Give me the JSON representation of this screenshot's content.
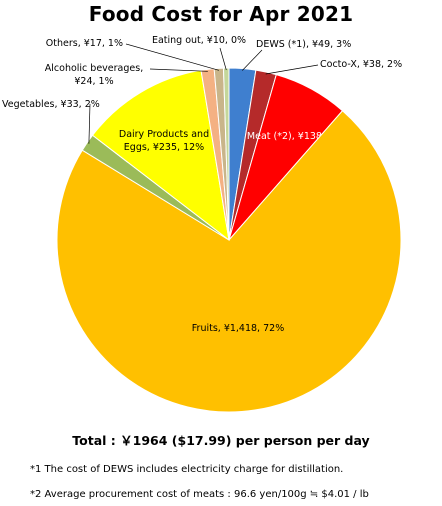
{
  "chart_data": {
    "type": "pie",
    "title": "Food Cost for Apr  2021",
    "start_angle_deg": 0,
    "direction": "clockwise",
    "slices": [
      {
        "name": "DEWS (*1)",
        "value": 49,
        "label": "DEWS (*1), ¥49, 3%",
        "color": "#3f7fcf"
      },
      {
        "name": "Cocto-X",
        "value": 38,
        "label": "Cocto-X, ¥38, 2%",
        "color": "#b52a2a"
      },
      {
        "name": "Meat (*2)",
        "value": 138,
        "label": "Meat (*2), ¥138, 7%",
        "color": "#ff0000"
      },
      {
        "name": "Fruits",
        "value": 1418,
        "label": "Fruits, ¥1,418, 72%",
        "color": "#ffc000"
      },
      {
        "name": "Vegetables",
        "value": 33,
        "label": "Vegetables, ¥33, 2%",
        "color": "#9bbb59"
      },
      {
        "name": "Dairy Products and Eggs",
        "value": 235,
        "label": [
          "Dairy Products and",
          "Eggs, ¥235, 12%"
        ],
        "color": "#ffff00"
      },
      {
        "name": "Alcoholic beverages",
        "value": 24,
        "label": [
          "Alcoholic beverages,",
          "¥24, 1%"
        ],
        "color": "#f4b183"
      },
      {
        "name": "Others",
        "value": 17,
        "label": "Others, ¥17, 1%",
        "color": "#c9b58a"
      },
      {
        "name": "Eating out",
        "value": 10,
        "label": "Eating out, ¥10, 0%",
        "color": "#c4d79b"
      }
    ]
  },
  "total_line": "Total : ￥1964 ($17.99) per person per day",
  "footnotes": [
    "*1 The cost of DEWS includes electricity charge for distillation.",
    "*2 Average procurement cost of meats : 96.6 yen/100g ≒ $4.01 / lb"
  ]
}
